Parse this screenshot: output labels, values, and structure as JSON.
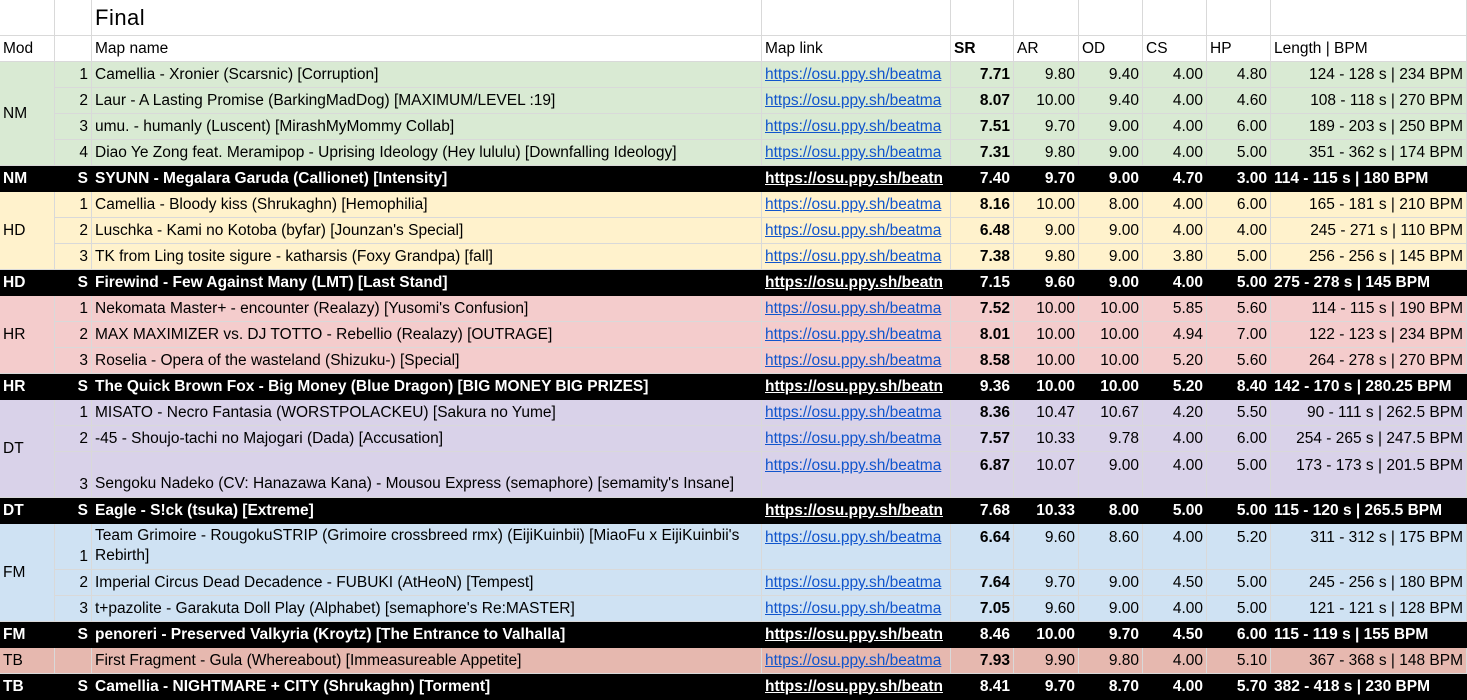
{
  "title": "Final",
  "headers": {
    "mod": "Mod",
    "map_name": "Map name",
    "map_link": "Map link",
    "sr": "SR",
    "ar": "AR",
    "od": "OD",
    "cs": "CS",
    "hp": "HP",
    "length_bpm": "Length | BPM"
  },
  "colors": {
    "NM": "#d9ead3",
    "HD": "#fff2cc",
    "HR": "#f4cccc",
    "DT": "#d9d2e9",
    "FM": "#cfe2f3",
    "TB": "#e6b8af",
    "selected": "#000000",
    "link": "#1155cc"
  },
  "groups": [
    {
      "mod": "NM",
      "maps": [
        {
          "num": "1",
          "name": "Camellia - Xronier (Scarsnic) [Corruption]",
          "link": "https://osu.ppy.sh/beatma",
          "sr": "7.71",
          "ar": "9.80",
          "od": "9.40",
          "cs": "4.00",
          "hp": "4.80",
          "len": "124 - 128 s | 234 BPM"
        },
        {
          "num": "2",
          "name": "Laur - A Lasting Promise (BarkingMadDog) [MAXIMUM/LEVEL :19]",
          "link": "https://osu.ppy.sh/beatma",
          "sr": "8.07",
          "ar": "10.00",
          "od": "9.40",
          "cs": "4.00",
          "hp": "4.60",
          "len": "108 - 118 s | 270 BPM"
        },
        {
          "num": "3",
          "name": "umu. - humanly (Luscent) [MirashMyMommy Collab]",
          "link": "https://osu.ppy.sh/beatma",
          "sr": "7.51",
          "ar": "9.70",
          "od": "9.00",
          "cs": "4.00",
          "hp": "6.00",
          "len": "189 - 203 s | 250 BPM"
        },
        {
          "num": "4",
          "name": "Diao Ye Zong feat. Meramipop - Uprising Ideology (Hey lululu) [Downfalling Ideology]",
          "link": "https://osu.ppy.sh/beatma",
          "sr": "7.31",
          "ar": "9.80",
          "od": "9.00",
          "cs": "4.00",
          "hp": "5.00",
          "len": "351 - 362 s | 174 BPM"
        }
      ],
      "selected": {
        "mod": "NM",
        "num": "S",
        "name": "SYUNN - Megalara Garuda (Callionet) [Intensity]",
        "link": "https://osu.ppy.sh/beatn",
        "sr": "7.40",
        "ar": "9.70",
        "od": "9.00",
        "cs": "4.70",
        "hp": "3.00",
        "len": "114 - 115 s | 180 BPM"
      }
    },
    {
      "mod": "HD",
      "maps": [
        {
          "num": "1",
          "name": "Camellia - Bloody kiss (Shrukaghn) [Hemophilia]",
          "link": "https://osu.ppy.sh/beatma",
          "sr": "8.16",
          "ar": "10.00",
          "od": "8.00",
          "cs": "4.00",
          "hp": "6.00",
          "len": "165 - 181 s | 210 BPM"
        },
        {
          "num": "2",
          "name": "Luschka - Kami no Kotoba (byfar) [Jounzan's Special]",
          "link": "https://osu.ppy.sh/beatma",
          "sr": "6.48",
          "ar": "9.00",
          "od": "9.00",
          "cs": "4.00",
          "hp": "4.00",
          "len": "245 - 271 s | 110 BPM"
        },
        {
          "num": "3",
          "name": "TK from Ling tosite sigure - katharsis (Foxy Grandpa) [fall]",
          "link": "https://osu.ppy.sh/beatma",
          "sr": "7.38",
          "ar": "9.80",
          "od": "9.00",
          "cs": "3.80",
          "hp": "5.00",
          "len": "256 - 256 s | 145 BPM"
        }
      ],
      "selected": {
        "mod": "HD",
        "num": "S",
        "name": "Firewind - Few Against Many (LMT) [Last Stand]",
        "link": "https://osu.ppy.sh/beatn",
        "sr": "7.15",
        "ar": "9.60",
        "od": "9.00",
        "cs": "4.00",
        "hp": "5.00",
        "len": "275 - 278 s | 145 BPM"
      }
    },
    {
      "mod": "HR",
      "maps": [
        {
          "num": "1",
          "name": "Nekomata Master+ - encounter (Realazy) [Yusomi's Confusion]",
          "link": "https://osu.ppy.sh/beatma",
          "sr": "7.52",
          "ar": "10.00",
          "od": "10.00",
          "cs": "5.85",
          "hp": "5.60",
          "len": "114 - 115 s | 190 BPM"
        },
        {
          "num": "2",
          "name": "MAX MAXIMIZER vs. DJ TOTTO - Rebellio (Realazy) [OUTRAGE]",
          "link": "https://osu.ppy.sh/beatma",
          "sr": "8.01",
          "ar": "10.00",
          "od": "10.00",
          "cs": "4.94",
          "hp": "7.00",
          "len": "122 - 123 s | 234 BPM"
        },
        {
          "num": "3",
          "name": "Roselia - Opera of the wasteland (Shizuku-) [Special]",
          "link": "https://osu.ppy.sh/beatma",
          "sr": "8.58",
          "ar": "10.00",
          "od": "10.00",
          "cs": "5.20",
          "hp": "5.60",
          "len": "264 - 278 s | 270 BPM"
        }
      ],
      "selected": {
        "mod": "HR",
        "num": "S",
        "name": "The Quick Brown Fox - Big Money (Blue Dragon) [BIG MONEY BIG PRIZES]",
        "link": "https://osu.ppy.sh/beatn",
        "sr": "9.36",
        "ar": "10.00",
        "od": "10.00",
        "cs": "5.20",
        "hp": "8.40",
        "len": "142 - 170 s | 280.25 BPM"
      }
    },
    {
      "mod": "DT",
      "maps": [
        {
          "num": "1",
          "name": "MISATO - Necro Fantasia (WORSTPOLACKEU) [Sakura no Yume]",
          "link": "https://osu.ppy.sh/beatma",
          "sr": "8.36",
          "ar": "10.47",
          "od": "10.67",
          "cs": "4.20",
          "hp": "5.50",
          "len": "90 - 111 s | 262.5 BPM"
        },
        {
          "num": "2",
          "name": "-45 - Shoujo-tachi no Majogari (Dada) [Accusation]",
          "link": "https://osu.ppy.sh/beatma",
          "sr": "7.57",
          "ar": "10.33",
          "od": "9.78",
          "cs": "4.00",
          "hp": "6.00",
          "len": "254 - 265 s | 247.5 BPM"
        },
        {
          "num": "3",
          "name": "Sengoku Nadeko (CV: Hanazawa Kana) - Mousou Express (semaphore) [semamity's Insane]",
          "link": "https://osu.ppy.sh/beatma",
          "sr": "6.87",
          "ar": "10.07",
          "od": "9.00",
          "cs": "4.00",
          "hp": "5.00",
          "len": "173 - 173 s | 201.5 BPM",
          "tall": true
        }
      ],
      "selected": {
        "mod": "DT",
        "num": "S",
        "name": "Eagle - S!ck (tsuka) [Extreme]",
        "link": "https://osu.ppy.sh/beatn",
        "sr": "7.68",
        "ar": "10.33",
        "od": "8.00",
        "cs": "5.00",
        "hp": "5.00",
        "len": "115 - 120 s | 265.5 BPM"
      }
    },
    {
      "mod": "FM",
      "maps": [
        {
          "num": "1",
          "name": "Team Grimoire - RougokuSTRIP (Grimoire crossbreed rmx) (EijiKuinbii) [MiaoFu x EijiKuinbii's Rebirth]",
          "link": "https://osu.ppy.sh/beatma",
          "sr": "6.64",
          "ar": "9.60",
          "od": "8.60",
          "cs": "4.00",
          "hp": "5.20",
          "len": "311 - 312 s | 175 BPM",
          "tall": true
        },
        {
          "num": "2",
          "name": "Imperial Circus Dead Decadence - FUBUKI (AtHeoN) [Tempest]",
          "link": "https://osu.ppy.sh/beatma",
          "sr": "7.64",
          "ar": "9.70",
          "od": "9.00",
          "cs": "4.50",
          "hp": "5.00",
          "len": "245 - 256 s | 180 BPM"
        },
        {
          "num": "3",
          "name": "t+pazolite - Garakuta Doll Play (Alphabet) [semaphore's Re:MASTER]",
          "link": "https://osu.ppy.sh/beatma",
          "sr": "7.05",
          "ar": "9.60",
          "od": "9.00",
          "cs": "4.00",
          "hp": "5.00",
          "len": "121 - 121 s | 128 BPM"
        }
      ],
      "selected": {
        "mod": "FM",
        "num": "S",
        "name": "penoreri - Preserved Valkyria (Kroytz) [The Entrance to Valhalla]",
        "link": "https://osu.ppy.sh/beatn",
        "sr": "8.46",
        "ar": "10.00",
        "od": "9.70",
        "cs": "4.50",
        "hp": "6.00",
        "len": "115 - 119 s | 155 BPM"
      }
    },
    {
      "mod": "TB",
      "maps": [
        {
          "num": "",
          "name": "First Fragment - Gula (Whereabout) [Immeasureable Appetite]",
          "link": "https://osu.ppy.sh/beatma",
          "sr": "7.93",
          "ar": "9.90",
          "od": "9.80",
          "cs": "4.00",
          "hp": "5.10",
          "len": "367 - 368 s | 148 BPM"
        }
      ],
      "selected": {
        "mod": "TB",
        "num": "S",
        "name": "Camellia - NIGHTMARE + CITY (Shrukaghn) [Torment]",
        "link": "https://osu.ppy.sh/beatn",
        "sr": "8.41",
        "ar": "9.70",
        "od": "8.70",
        "cs": "4.00",
        "hp": "5.70",
        "len": "382 - 418 s | 230 BPM"
      }
    }
  ]
}
